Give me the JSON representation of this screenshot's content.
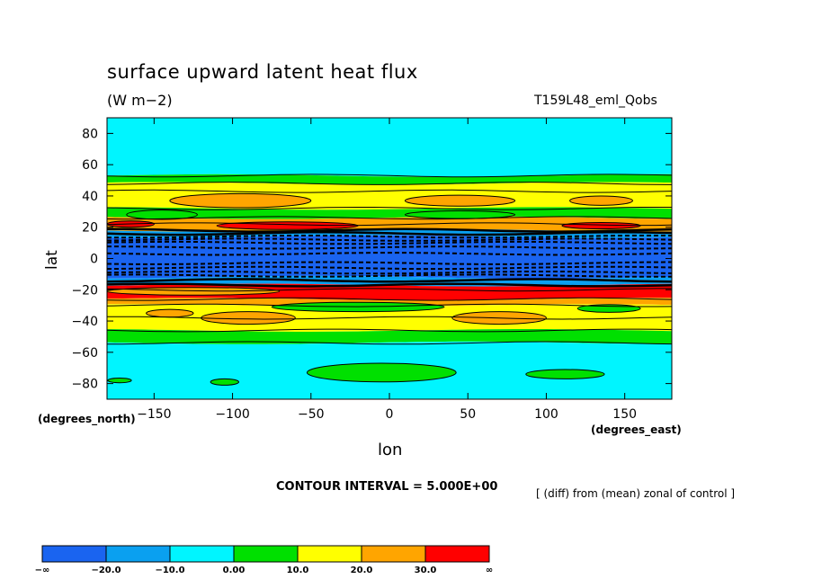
{
  "chart_data": {
    "type": "heatmap",
    "title": "surface upward latent heat flux",
    "units": "(W m−2)",
    "run_label": "T159L48_eml_Qobs",
    "xlabel": "lon",
    "ylabel": "lat",
    "x_units_label": "(degrees_east)",
    "y_units_label": "(degrees_north)",
    "xlim": [
      -180,
      180
    ],
    "ylim": [
      -90,
      90
    ],
    "x_ticks": [
      -150,
      -100,
      -50,
      0,
      50,
      100,
      150
    ],
    "x_tick_labels": [
      "−150",
      "−100",
      "−50",
      "0",
      "50",
      "100",
      "150"
    ],
    "y_ticks": [
      80,
      60,
      40,
      20,
      0,
      -20,
      -40,
      -60,
      -80
    ],
    "y_tick_labels": [
      "80",
      "60",
      "40",
      "20",
      "0",
      "−20",
      "−40",
      "−60",
      "−80"
    ],
    "contour_interval_text": "CONTOUR INTERVAL = 5.000E+00",
    "note": "[ (diff) from (mean) zonal of control ]",
    "colorbar": {
      "levels": [
        "−∞",
        "−20.0",
        "−10.0",
        "0.00",
        "10.0",
        "20.0",
        "30.0",
        "∞"
      ],
      "colors": [
        "#1a64f0",
        "#0aa0f0",
        "#00f5ff",
        "#00e000",
        "#ffff00",
        "#ffa500",
        "#ff0000"
      ]
    },
    "bands": [
      {
        "lat_from": 90,
        "lat_to": 53,
        "class": 2
      },
      {
        "lat_from": 53,
        "lat_to": 48,
        "class": 3
      },
      {
        "lat_from": 48,
        "lat_to": 32,
        "class": 4
      },
      {
        "lat_from": 32,
        "lat_to": 26,
        "class": 3
      },
      {
        "lat_from": 26,
        "lat_to": 18,
        "class": 5
      },
      {
        "lat_from": 18,
        "lat_to": 14,
        "class": 1
      },
      {
        "lat_from": 14,
        "lat_to": -12,
        "class": 0
      },
      {
        "lat_from": -12,
        "lat_to": -17,
        "class": 1
      },
      {
        "lat_from": -17,
        "lat_to": -26,
        "class": 6
      },
      {
        "lat_from": -26,
        "lat_to": -30,
        "class": 5
      },
      {
        "lat_from": -30,
        "lat_to": -46,
        "class": 4
      },
      {
        "lat_from": -46,
        "lat_to": -54,
        "class": 3
      },
      {
        "lat_from": -54,
        "lat_to": -90,
        "class": 2
      }
    ],
    "patches": [
      {
        "lon": -95,
        "lat": 37,
        "w": 90,
        "h": 9,
        "class": 5
      },
      {
        "lon": 45,
        "lat": 37,
        "w": 70,
        "h": 7,
        "class": 5
      },
      {
        "lon": 135,
        "lat": 37,
        "w": 40,
        "h": 6,
        "class": 5
      },
      {
        "lon": -145,
        "lat": 28,
        "w": 45,
        "h": 6,
        "class": 3
      },
      {
        "lon": 45,
        "lat": 28,
        "w": 70,
        "h": 5,
        "class": 3
      },
      {
        "lon": -65,
        "lat": 21,
        "w": 90,
        "h": 5,
        "class": 6
      },
      {
        "lon": 135,
        "lat": 21,
        "w": 50,
        "h": 4,
        "class": 6
      },
      {
        "lon": -165,
        "lat": 22,
        "w": 30,
        "h": 4,
        "class": 6
      },
      {
        "lon": -125,
        "lat": -21,
        "w": 110,
        "h": 5,
        "class": 5
      },
      {
        "lon": -20,
        "lat": -31,
        "w": 110,
        "h": 6,
        "class": 3
      },
      {
        "lon": 140,
        "lat": -32,
        "w": 40,
        "h": 5,
        "class": 3
      },
      {
        "lon": -90,
        "lat": -38,
        "w": 60,
        "h": 8,
        "class": 5
      },
      {
        "lon": 70,
        "lat": -38,
        "w": 60,
        "h": 8,
        "class": 5
      },
      {
        "lon": -140,
        "lat": -35,
        "w": 30,
        "h": 5,
        "class": 5
      },
      {
        "lon": -5,
        "lat": -73,
        "w": 95,
        "h": 12,
        "class": 3
      },
      {
        "lon": 112,
        "lat": -74,
        "w": 50,
        "h": 6,
        "class": 3
      },
      {
        "lon": -172,
        "lat": -78,
        "w": 15,
        "h": 3,
        "class": 3
      },
      {
        "lon": -105,
        "lat": -79,
        "w": 18,
        "h": 4,
        "class": 3
      }
    ],
    "dashed_lines_lat": [
      14,
      12,
      10,
      7,
      3,
      -3,
      -6,
      -9,
      -11
    ],
    "solid_lines_lat": [
      53,
      48,
      43,
      32,
      26,
      22,
      18,
      16,
      -14,
      -17,
      -20,
      -26,
      -30,
      -38,
      -46,
      -54
    ]
  }
}
